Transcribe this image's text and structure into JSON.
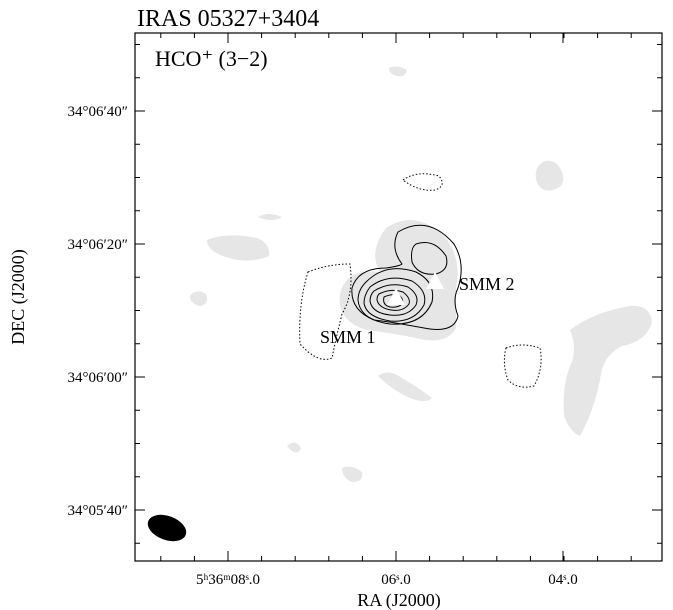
{
  "title": "IRAS 05327+3404",
  "panel_label": "HCO⁺ (3−2)",
  "x_axis": {
    "label": "RA (J2000)",
    "ticks": [
      "5ʰ36ᵐ08ˢ.0",
      "06ˢ.0",
      "04ˢ.0"
    ]
  },
  "y_axis": {
    "label": "DEC (J2000)",
    "ticks": [
      "34°06′40″",
      "34°06′20″",
      "34°06′00″",
      "34°05′40″"
    ]
  },
  "sources": [
    "SMM 1",
    "SMM 2"
  ]
}
